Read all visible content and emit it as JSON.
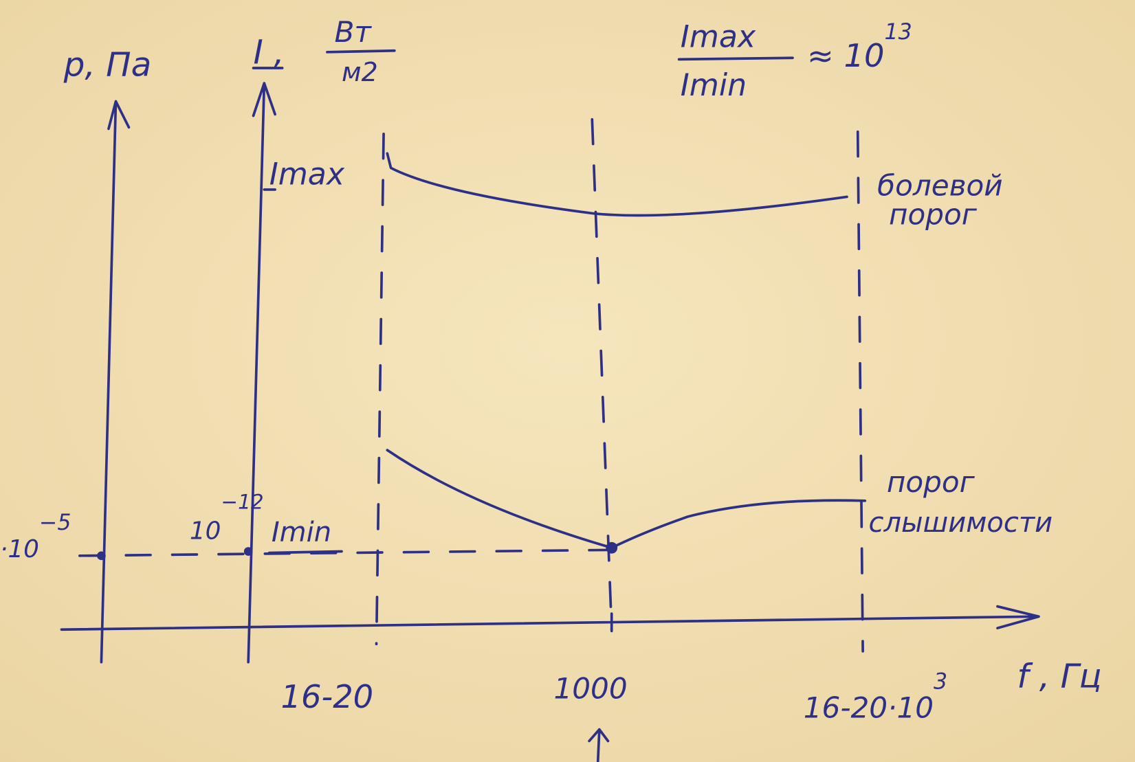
{
  "axes": {
    "pressure_label": "p, Па",
    "intensity_label": {
      "symbol": "I ,",
      "unit_top": "Вт",
      "unit_bottom": "м2"
    },
    "frequency_label": "f , Гц"
  },
  "ratio": {
    "numerator": "Imax",
    "denominator": "Imin",
    "relation": "≈ 10",
    "exponent": "13"
  },
  "levels": {
    "imax": "Imax",
    "imin": "Imin",
    "imin_value": {
      "base": "10",
      "exponent": "−12"
    },
    "pressure_value": {
      "base": "·10",
      "exponent": "−5"
    }
  },
  "curves": {
    "pain_threshold": [
      "болевой",
      "порог"
    ],
    "hearing_threshold": [
      "порог",
      "слышимости"
    ]
  },
  "frequency_ticks": [
    {
      "base": "16-20"
    },
    {
      "base": "1000"
    },
    {
      "base": "16-20·10",
      "exponent": "3"
    }
  ]
}
